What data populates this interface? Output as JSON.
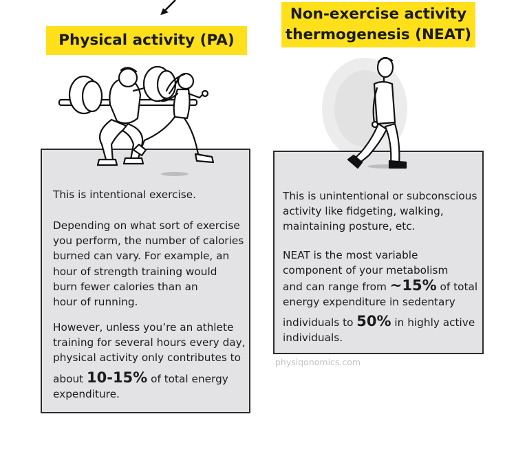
{
  "pa": {
    "title": "Physical activity (PA)",
    "p1": "This is intentional exercise.",
    "p2": "Depending on what sort of exercise\nyou perform, the number of calories\nburned can vary. For example, an\nhour of strength training would\nburn fewer calories than an\nhour of running.",
    "p3": "However, unless you’re an athlete\ntraining for several hours every day,\nphysical activity only contributes to",
    "p4_pre": "about ",
    "p4_highlight": "10-15%",
    "p4_post": " of total energy\nexpenditure."
  },
  "neat": {
    "title_line1": "Non-exercise activity",
    "title_line2": "thermogenesis (NEAT)",
    "p1": "This is unintentional or subconscious\nactivity like fidgeting, walking,\nmaintaining posture, etc.",
    "p2": "NEAT is the most variable\ncomponent of your metabolism",
    "p3_pre": "and can range from ",
    "p3_highlight": "~15%",
    "p3_post": " of total\nenergy expenditure in sedentary",
    "p4_pre": "individuals to ",
    "p4_highlight": "50%",
    "p4_post": " in highly active\nindividuals."
  },
  "watermark": "physiqonomics.com",
  "colors": {
    "title_highlight": "#ffe01b",
    "box_fill": "#e3e3e5",
    "box_border": "#2b2b2b",
    "watermark": "#c2c2c2"
  },
  "icons": {
    "arrow": "arrow-down-left-icon",
    "pa_illustration": "weightlifter-and-runner",
    "neat_illustration": "walking-man"
  }
}
